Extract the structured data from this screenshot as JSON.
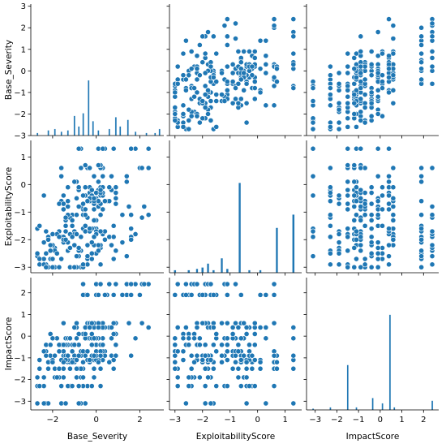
{
  "chart_data": {
    "type": "scatter",
    "variables": [
      "Base_Severity",
      "ExploitabilityScore",
      "ImpactScore"
    ],
    "color": "#1f77b4",
    "ticks": {
      "Base_Severity": [
        -2,
        0,
        2
      ],
      "ExploitabilityScore": [
        -3,
        -2,
        -1,
        0,
        1
      ],
      "ImpactScore": [
        -3,
        -2,
        -1,
        0,
        1,
        2
      ]
    },
    "tick_labels": {
      "Base_Severity": [
        "−2",
        "0",
        "2"
      ],
      "ExploitabilityScore": [
        "−3",
        "−2",
        "−1",
        "0",
        "1"
      ],
      "ImpactScore": [
        "−3",
        "−2",
        "−1",
        "0",
        "1",
        "2"
      ]
    },
    "row_ticks": {
      "Base_Severity": [
        -3,
        -2,
        -1,
        0,
        1,
        2,
        3
      ],
      "ExploitabilityScore": [
        -3,
        -2,
        -1,
        0,
        1
      ],
      "ImpactScore": [
        -3,
        -2,
        -1,
        0,
        1,
        2
      ]
    },
    "row_tick_labels": {
      "Base_Severity": [
        "−3",
        "−2",
        "−1",
        "0",
        "1",
        "2",
        "3"
      ],
      "ExploitabilityScore": [
        "−3",
        "−2",
        "−1",
        "0",
        "1"
      ],
      "ImpactScore": [
        "−3",
        "−2",
        "−1",
        "0",
        "1",
        "2"
      ]
    },
    "ranges": {
      "Base_Severity": [
        -3.0,
        3.1
      ],
      "ExploitabilityScore": [
        -3.2,
        1.6
      ],
      "ImpactScore": [
        -3.4,
        2.7
      ]
    },
    "levels": {
      "Base_Severity": [
        -2.7,
        -2.6,
        -2.4,
        -2.3,
        -2.2,
        -2.1,
        -2.0,
        -1.9,
        -1.8,
        -1.7,
        -1.6,
        -1.5,
        -1.4,
        -1.3,
        -1.2,
        -1.1,
        -1.0,
        -0.9,
        -0.8,
        -0.7,
        -0.6,
        -0.5,
        -0.4,
        -0.3,
        -0.2,
        -0.1,
        0.0,
        0.1,
        0.2,
        0.3,
        0.4,
        0.5,
        0.6,
        0.7,
        0.8,
        0.9,
        1.0,
        1.1,
        1.2,
        1.3,
        1.4,
        1.5,
        1.6,
        1.7,
        1.8,
        1.9,
        2.0,
        2.1,
        2.2,
        2.3,
        2.4,
        2.5,
        2.6,
        2.7,
        2.8,
        2.9
      ],
      "ExploitabilityScore": [
        -3.0,
        -2.9,
        -2.7,
        -2.6,
        -2.5,
        -2.4,
        -2.3,
        -2.2,
        -2.1,
        -2.0,
        -1.9,
        -1.8,
        -1.7,
        -1.6,
        -1.5,
        -1.3,
        -1.2,
        -1.1,
        -0.9,
        -0.8,
        -0.7,
        -0.6,
        -0.5,
        -0.4,
        -0.3,
        -0.2,
        -0.1,
        0.1,
        0.3,
        0.6,
        0.7,
        1.3
      ],
      "ImpactScore": [
        -3.1,
        -2.3,
        -1.9,
        -1.5,
        -1.2,
        -1.1,
        -0.9,
        -0.7,
        -0.4,
        -0.1,
        0.1,
        0.4,
        0.6,
        1.9,
        2.4
      ]
    },
    "histograms": {
      "Base_Severity": {
        "centers": [
          -2.7,
          -2.2,
          -1.9,
          -1.6,
          -1.3,
          -1.0,
          -0.8,
          -0.6,
          -0.35,
          -0.15,
          0.1,
          0.6,
          0.9,
          1.1,
          1.45,
          1.8,
          2.3,
          2.7,
          2.9
        ],
        "heights": [
          0.02,
          0.04,
          0.05,
          0.03,
          0.04,
          0.15,
          0.07,
          0.17,
          0.42,
          0.11,
          0.04,
          0.05,
          0.14,
          0.07,
          0.12,
          0.03,
          0.02,
          0.02,
          0.05
        ],
        "bar_width": 0.07
      },
      "ExploitabilityScore": {
        "centers": [
          -3.0,
          -2.5,
          -2.2,
          -2.0,
          -1.8,
          -1.6,
          -1.3,
          -1.1,
          -0.65,
          -0.3,
          0.1,
          0.7,
          1.3
        ],
        "heights": [
          0.02,
          0.02,
          0.03,
          0.04,
          0.07,
          0.02,
          0.11,
          0.03,
          0.68,
          0.02,
          0.02,
          0.34,
          0.44
        ],
        "bar_width": 0.08
      },
      "ImpactScore": {
        "centers": [
          -3.1,
          -2.3,
          -1.5,
          -1.1,
          -0.35,
          0.1,
          0.45,
          0.65,
          2.4
        ],
        "heights": [
          0.01,
          0.02,
          0.34,
          0.02,
          0.09,
          0.05,
          0.72,
          0.02,
          0.07
        ],
        "bar_width": 0.07
      }
    }
  }
}
